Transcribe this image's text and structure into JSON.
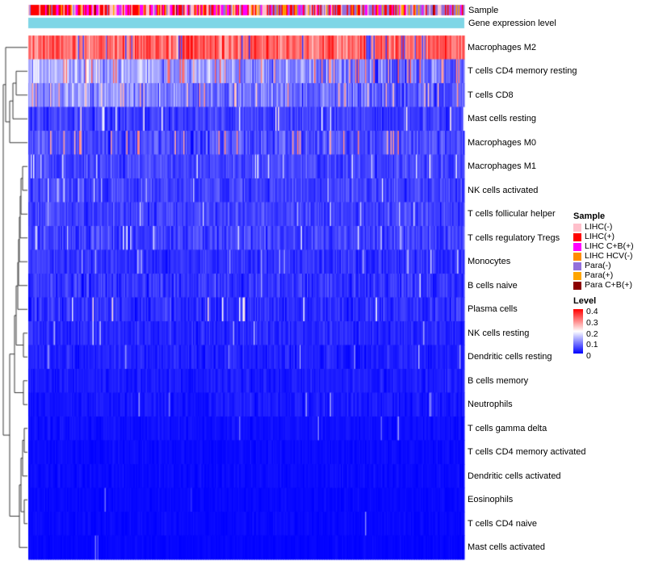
{
  "chart_data": {
    "type": "heatmap",
    "n_columns": 360,
    "value_range": [
      0,
      0.4
    ],
    "colorscale": {
      "low": "#0000FF",
      "mid": "#FFFFFF",
      "high": "#FF0000"
    },
    "annotation_rows": [
      {
        "label": "Sample",
        "type": "categorical"
      },
      {
        "label": "Gene expression level",
        "type": "uniform",
        "color": "#7FD6E6"
      }
    ],
    "sample_categories": [
      {
        "label": "LIHC(-)",
        "color": "#FFC0CB"
      },
      {
        "label": "LIHC(+)",
        "color": "#FF0000"
      },
      {
        "label": "LIHC C+B(+)",
        "color": "#FF00FF"
      },
      {
        "label": "LIHC HCV(-)",
        "color": "#FF8C00"
      },
      {
        "label": "Para(-)",
        "color": "#9370DB"
      },
      {
        "label": "Para(+)",
        "color": "#FFA500"
      },
      {
        "label": "Para C+B(+)",
        "color": "#8B0000"
      }
    ],
    "rows": [
      {
        "label": "Macrophages M2",
        "mean": 0.32,
        "sd": 0.06,
        "spike_p": 0.05,
        "spike_v": 0.06,
        "trend": 0
      },
      {
        "label": "T cells CD4 memory resting",
        "mean": 0.11,
        "sd": 0.06,
        "spike_p": 0.1,
        "spike_v": 0.3,
        "trend": 0.08
      },
      {
        "label": "T cells CD8",
        "mean": 0.09,
        "sd": 0.05,
        "spike_p": 0.06,
        "spike_v": 0.26,
        "trend": 0.05
      },
      {
        "label": "Mast cells resting",
        "mean": 0.05,
        "sd": 0.03,
        "spike_p": 0.04,
        "spike_v": 0.2,
        "trend": 0
      },
      {
        "label": "Macrophages M0",
        "mean": 0.06,
        "sd": 0.04,
        "spike_p": 0.06,
        "spike_v": 0.28,
        "trend": 0
      },
      {
        "label": "Macrophages M1",
        "mean": 0.055,
        "sd": 0.03,
        "spike_p": 0.03,
        "spike_v": 0.18,
        "trend": 0
      },
      {
        "label": "NK cells activated",
        "mean": 0.05,
        "sd": 0.03,
        "spike_p": 0.02,
        "spike_v": 0.16,
        "trend": 0
      },
      {
        "label": "T cells follicular helper",
        "mean": 0.05,
        "sd": 0.03,
        "spike_p": 0.02,
        "spike_v": 0.15,
        "trend": 0
      },
      {
        "label": "T cells regulatory Tregs",
        "mean": 0.05,
        "sd": 0.035,
        "spike_p": 0.03,
        "spike_v": 0.17,
        "trend": 0
      },
      {
        "label": "Monocytes",
        "mean": 0.04,
        "sd": 0.025,
        "spike_p": 0.02,
        "spike_v": 0.14,
        "trend": 0
      },
      {
        "label": "B cells naive",
        "mean": 0.04,
        "sd": 0.03,
        "spike_p": 0.02,
        "spike_v": 0.15,
        "trend": 0
      },
      {
        "label": "Plasma cells",
        "mean": 0.035,
        "sd": 0.03,
        "spike_p": 0.03,
        "spike_v": 0.2,
        "trend": 0
      },
      {
        "label": "NK cells resting",
        "mean": 0.03,
        "sd": 0.02,
        "spike_p": 0.02,
        "spike_v": 0.14,
        "trend": 0
      },
      {
        "label": "Dendritic cells resting",
        "mean": 0.025,
        "sd": 0.02,
        "spike_p": 0.015,
        "spike_v": 0.12,
        "trend": 0
      },
      {
        "label": "B cells memory",
        "mean": 0.02,
        "sd": 0.015,
        "spike_p": 0.015,
        "spike_v": 0.12,
        "trend": 0
      },
      {
        "label": "Neutrophils",
        "mean": 0.018,
        "sd": 0.015,
        "spike_p": 0.01,
        "spike_v": 0.1,
        "trend": 0
      },
      {
        "label": "T cells gamma delta",
        "mean": 0.012,
        "sd": 0.01,
        "spike_p": 0.008,
        "spike_v": 0.1,
        "trend": 0
      },
      {
        "label": "T cells CD4 memory activated",
        "mean": 0.008,
        "sd": 0.008,
        "spike_p": 0.006,
        "spike_v": 0.08,
        "trend": 0
      },
      {
        "label": "Dendritic cells activated",
        "mean": 0.008,
        "sd": 0.008,
        "spike_p": 0.005,
        "spike_v": 0.08,
        "trend": 0
      },
      {
        "label": "Eosinophils",
        "mean": 0.006,
        "sd": 0.006,
        "spike_p": 0.004,
        "spike_v": 0.06,
        "trend": 0
      },
      {
        "label": "T cells CD4 naive",
        "mean": 0.006,
        "sd": 0.007,
        "spike_p": 0.006,
        "spike_v": 0.1,
        "trend": 0
      },
      {
        "label": "Mast cells activated",
        "mean": 0.004,
        "sd": 0.005,
        "spike_p": 0.004,
        "spike_v": 0.08,
        "trend": 0
      }
    ],
    "legend": {
      "sample_title": "Sample",
      "level_title": "Level",
      "level_ticks": [
        "0.4",
        "0.3",
        "0.2",
        "0.1",
        "0"
      ]
    }
  }
}
